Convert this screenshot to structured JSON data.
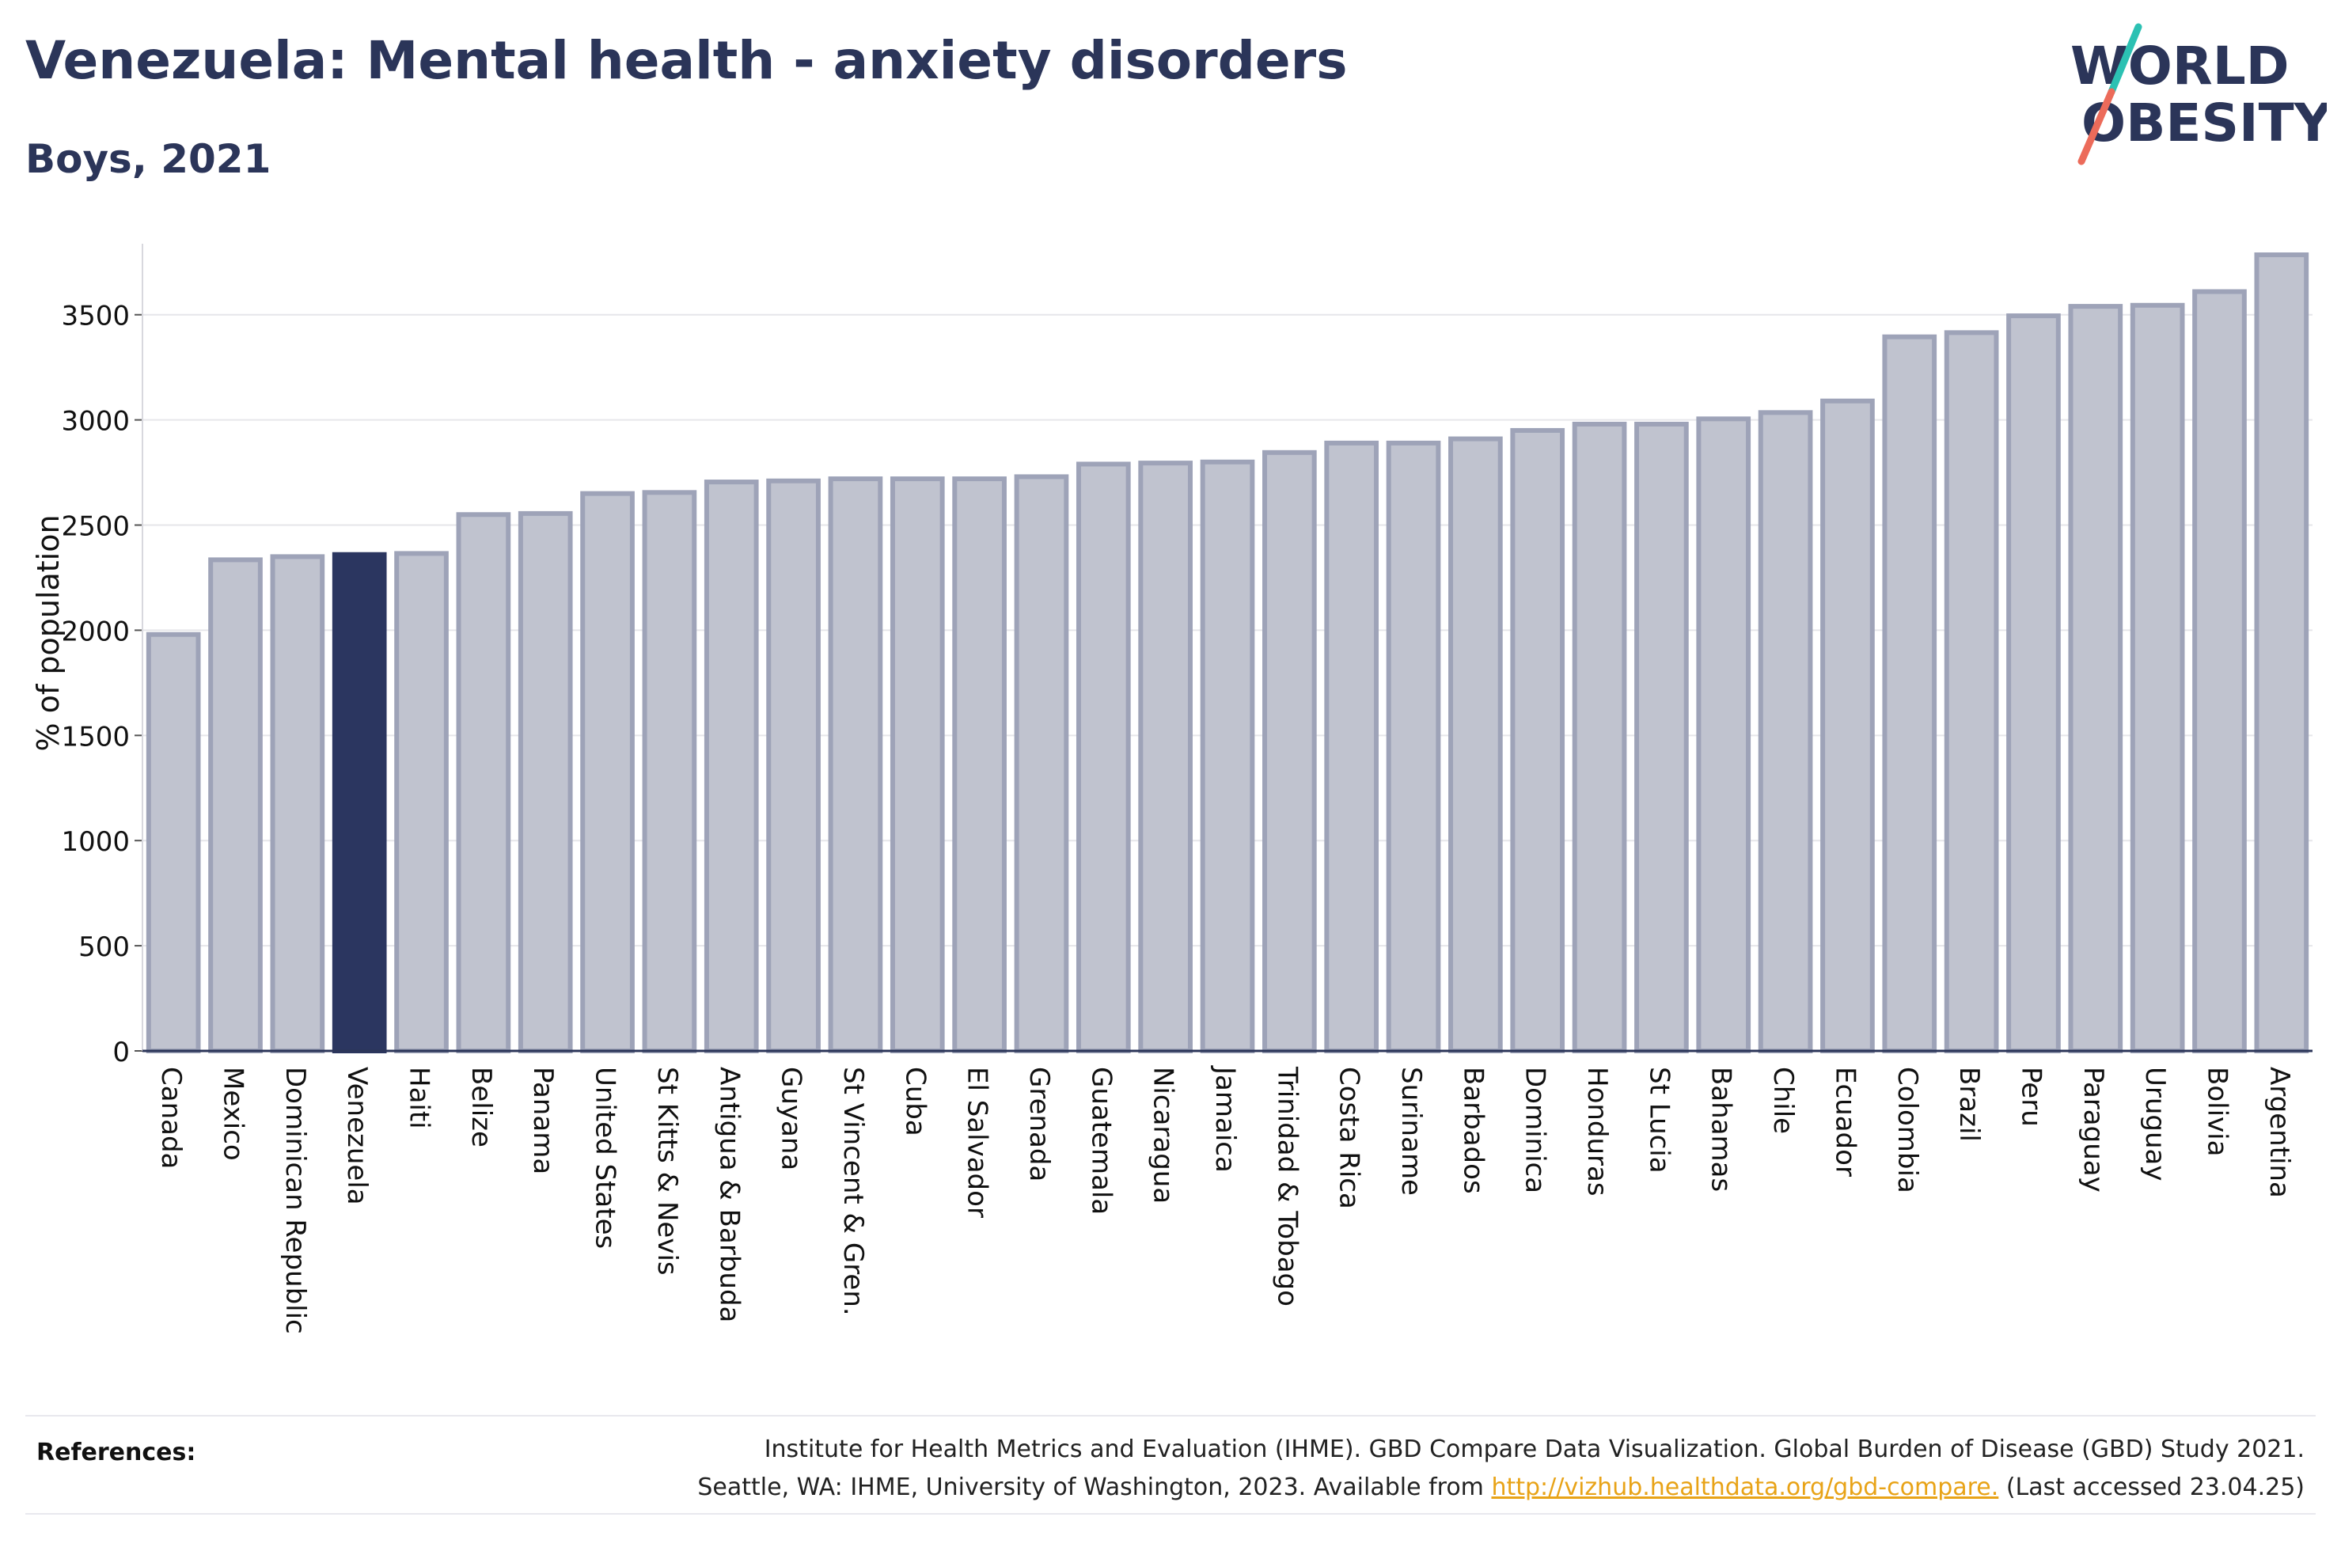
{
  "header": {
    "title": "Venezuela: Mental health - anxiety disorders",
    "subtitle": "Boys, 2021"
  },
  "logo": {
    "line1": "WORLD",
    "line2": "OBESITY"
  },
  "colors": {
    "highlight": "#2b3660",
    "bar_fill": "#c0c3cf",
    "bar_stroke": "#9ea3b8",
    "text": "#2b3559",
    "link": "#e8a317"
  },
  "chart_data": {
    "type": "bar",
    "title": "Venezuela: Mental health - anxiety disorders",
    "subtitle": "Boys, 2021",
    "ylabel": "% of population",
    "xlabel": "",
    "ylim": [
      0,
      3800
    ],
    "yticks": [
      0,
      500,
      1000,
      1500,
      2000,
      2500,
      3000,
      3500
    ],
    "grid": true,
    "highlight": "Venezuela",
    "categories": [
      "Canada",
      "Mexico",
      "Dominican Republic",
      "Venezuela",
      "Haiti",
      "Belize",
      "Panama",
      "United States",
      "St Kitts & Nevis",
      "Antigua & Barbuda",
      "Guyana",
      "St Vincent & Gren.",
      "Cuba",
      "El Salvador",
      "Grenada",
      "Guatemala",
      "Nicaragua",
      "Jamaica",
      "Trinidad & Tobago",
      "Costa Rica",
      "Suriname",
      "Barbados",
      "Dominica",
      "Honduras",
      "St Lucia",
      "Bahamas",
      "Chile",
      "Ecuador",
      "Colombia",
      "Brazil",
      "Peru",
      "Paraguay",
      "Uruguay",
      "Bolivia",
      "Argentina"
    ],
    "values": [
      1980,
      2335,
      2350,
      2360,
      2365,
      2550,
      2555,
      2650,
      2655,
      2705,
      2710,
      2720,
      2720,
      2720,
      2730,
      2790,
      2795,
      2800,
      2845,
      2890,
      2890,
      2910,
      2950,
      2980,
      2980,
      3005,
      3035,
      3090,
      3395,
      3415,
      3495,
      3540,
      3545,
      3610,
      3785
    ]
  },
  "references": {
    "label": "References:",
    "line1": "Institute for Health Metrics and Evaluation (IHME). GBD Compare Data Visualization. Global Burden of Disease (GBD) Study 2021.",
    "line2_prefix": "Seattle, WA: IHME, University of Washington, 2023. Available from ",
    "link": "http://vizhub.healthdata.org/gbd-compare.",
    "line2_suffix": " (Last accessed 23.04.25)"
  }
}
